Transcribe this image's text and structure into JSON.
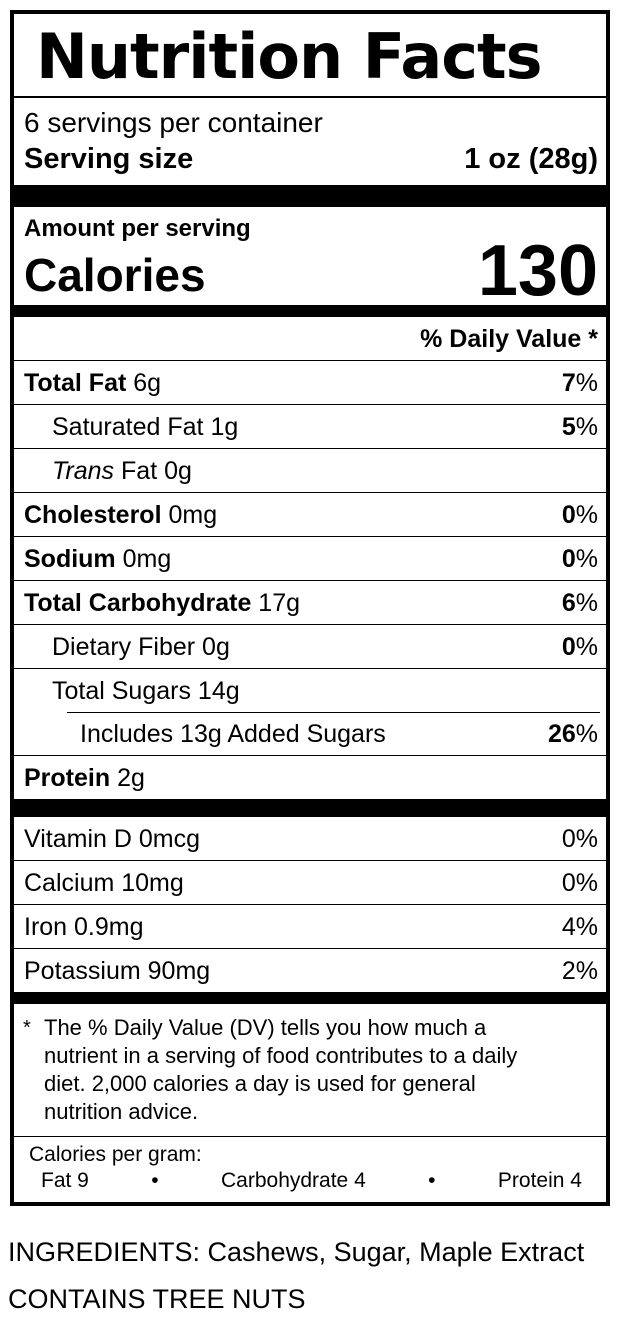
{
  "label": {
    "title": "Nutrition Facts",
    "servings_per_container": "6 servings per container",
    "serving_size_label": "Serving size",
    "serving_size_value": "1 oz (28g)",
    "amount_per_serving": "Amount per serving",
    "calories_label": "Calories",
    "calories_value": "130",
    "daily_value_header": "% Daily Value *",
    "nutrients": [
      {
        "label": "Total Fat",
        "value": "6g",
        "dv": "7",
        "pct": "%"
      },
      {
        "label": "Saturated Fat",
        "value": "1g",
        "dv": "5",
        "pct": "%"
      },
      {
        "label_italic": "Trans",
        "label": "Fat",
        "value": "0g"
      },
      {
        "label": "Cholesterol",
        "value": "0mg",
        "dv": "0",
        "pct": "%"
      },
      {
        "label": "Sodium",
        "value": "0mg",
        "dv": "0",
        "pct": "%"
      },
      {
        "label": "Total Carbohydrate",
        "value": "17g",
        "dv": "6",
        "pct": "%"
      },
      {
        "label": "Dietary Fiber",
        "value": "0g",
        "dv": "0",
        "pct": "%"
      },
      {
        "label": "Total Sugars",
        "value": "14g"
      },
      {
        "label": "Includes 13g Added Sugars",
        "dv": "26",
        "pct": "%"
      },
      {
        "label": "Protein",
        "value": "2g"
      }
    ],
    "vitamins": [
      {
        "label": "Vitamin D 0mcg",
        "dv": "0",
        "pct": "%"
      },
      {
        "label": "Calcium 10mg",
        "dv": "0",
        "pct": "%"
      },
      {
        "label": "Iron 0.9mg",
        "dv": "4",
        "pct": "%"
      },
      {
        "label": "Potassium 90mg",
        "dv": "2",
        "pct": "%"
      }
    ],
    "footnote_marker": "*",
    "footnote": "The % Daily Value (DV) tells you how much a nutrient in a serving of food contributes to a daily diet. 2,000 calories a day is used for general nutrition advice.",
    "calories_per_gram": {
      "heading": "Calories per gram:",
      "fat": "Fat 9",
      "bullet1": "•",
      "carbohydrate": "Carbohydrate 4",
      "bullet2": "•",
      "protein": "Protein 4"
    }
  },
  "below_label": {
    "ingredients": "INGREDIENTS: Cashews, Sugar, Maple Extract",
    "allergen": "CONTAINS TREE NUTS"
  },
  "colors": {
    "ink": "#000000",
    "paper": "#ffffff"
  }
}
